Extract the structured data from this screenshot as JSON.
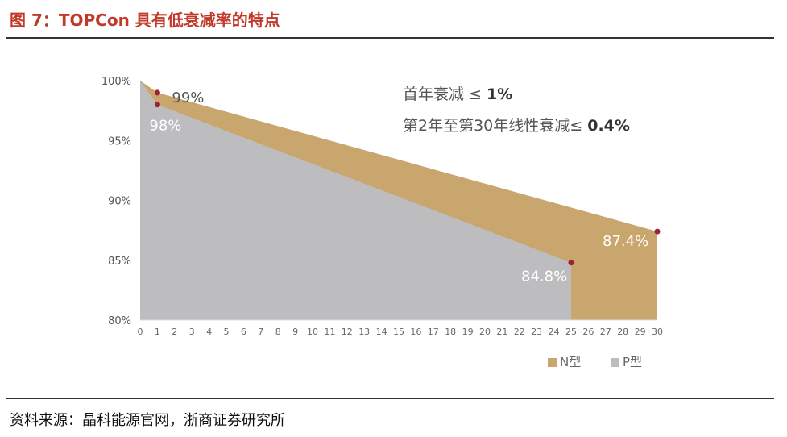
{
  "header": {
    "title": "图 7：TOPCon 具有低衰减率的特点"
  },
  "footer": {
    "source": "资料来源：晶科能源官网，浙商证券研究所"
  },
  "chart_data": {
    "type": "area",
    "title": "",
    "xlabel": "",
    "ylabel": "",
    "xlim": [
      0,
      30
    ],
    "ylim": [
      80,
      100
    ],
    "x_ticks": [
      0,
      1,
      2,
      3,
      4,
      5,
      6,
      7,
      8,
      9,
      10,
      11,
      12,
      13,
      14,
      15,
      16,
      17,
      18,
      19,
      20,
      21,
      22,
      23,
      24,
      25,
      26,
      27,
      28,
      29,
      30
    ],
    "y_ticks": [
      80,
      85,
      90,
      95,
      100
    ],
    "y_tick_labels": [
      "80%",
      "85%",
      "90%",
      "95%",
      "100%"
    ],
    "series": [
      {
        "name": "N型",
        "color": "#c8a66e",
        "x": [
          0,
          1,
          30
        ],
        "y": [
          100,
          99,
          87.4
        ]
      },
      {
        "name": "P型",
        "color": "#bdbdbf",
        "x": [
          0,
          1,
          25
        ],
        "y": [
          100,
          98,
          84.8
        ]
      }
    ],
    "point_labels": [
      {
        "x": 1,
        "y": 99,
        "text": "99%"
      },
      {
        "x": 1,
        "y": 98,
        "text": "98%"
      },
      {
        "x": 25,
        "y": 84.8,
        "text": "84.8%"
      },
      {
        "x": 30,
        "y": 87.4,
        "text": "87.4%"
      }
    ],
    "point_color": "#9b2335",
    "annotations": [
      {
        "prefix": "首年衰减 ≤ ",
        "value": "1%"
      },
      {
        "prefix": "第2年至第30年线性衰减≤ ",
        "value": "0.4%"
      }
    ],
    "legend": {
      "position": "bottom-right",
      "entries": [
        "N型",
        "P型"
      ]
    },
    "grid": false
  }
}
